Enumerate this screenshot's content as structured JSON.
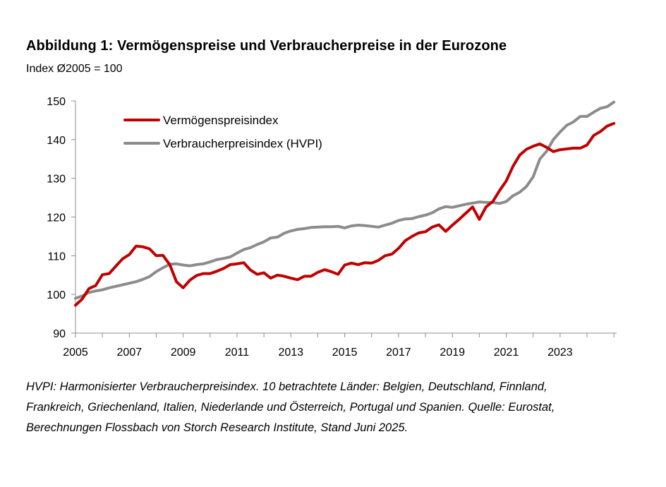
{
  "title": "Abbildung 1: Vermögenspreise und Verbraucherpreise in der Eurozone",
  "subtitle": "Index Ø2005 = 100",
  "footnote": {
    "line1": "HVPI: Harmonisierter Verbraucherpreisindex. 10 betrachtete Länder: Belgien, Deutschland, Finnland,",
    "line2": "Frankreich, Griechenland, Italien, Niederlande und Österreich, Portugal und Spanien. Quelle: Eurostat,",
    "line3": "Berechnungen Flossbach von Storch Research Institute, Stand Juni 2025."
  },
  "chart_data": {
    "type": "line",
    "title": "Abbildung 1: Vermögenspreise und Verbraucherpreise in der Eurozone",
    "ylabel": "Index Ø2005 = 100",
    "xlabel": "",
    "xlim": [
      2005,
      2025.1
    ],
    "ylim": [
      90,
      150
    ],
    "yticks": [
      90,
      100,
      110,
      120,
      130,
      140,
      150
    ],
    "xticks": [
      2005,
      2007,
      2009,
      2011,
      2013,
      2015,
      2017,
      2019,
      2021,
      2023
    ],
    "xtick_labels": [
      "2005",
      "2007",
      "2009",
      "2011",
      "2013",
      "2015",
      "2017",
      "2019",
      "2021",
      "2023"
    ],
    "ytick_labels": [
      "90",
      "100",
      "110",
      "120",
      "130",
      "140",
      "150"
    ],
    "grid": false,
    "legend_position": "top-left",
    "series": [
      {
        "name": "Vermögenspreisindex",
        "color": "#c00000",
        "x": [
          2005.0,
          2005.25,
          2005.5,
          2005.75,
          2006.0,
          2006.25,
          2006.5,
          2006.75,
          2007.0,
          2007.25,
          2007.5,
          2007.75,
          2008.0,
          2008.25,
          2008.5,
          2008.75,
          2009.0,
          2009.25,
          2009.5,
          2009.75,
          2010.0,
          2010.25,
          2010.5,
          2010.75,
          2011.0,
          2011.25,
          2011.5,
          2011.75,
          2012.0,
          2012.25,
          2012.5,
          2012.75,
          2013.0,
          2013.25,
          2013.5,
          2013.75,
          2014.0,
          2014.25,
          2014.5,
          2014.75,
          2015.0,
          2015.25,
          2015.5,
          2015.75,
          2016.0,
          2016.25,
          2016.5,
          2016.75,
          2017.0,
          2017.25,
          2017.5,
          2017.75,
          2018.0,
          2018.25,
          2018.5,
          2018.75,
          2019.0,
          2019.25,
          2019.5,
          2019.75,
          2020.0,
          2020.25,
          2020.5,
          2020.75,
          2021.0,
          2021.25,
          2021.5,
          2021.75,
          2022.0,
          2022.25,
          2022.5,
          2022.75,
          2023.0,
          2023.25,
          2023.5,
          2023.75,
          2024.0,
          2024.25,
          2024.5,
          2024.75,
          2025.0
        ],
        "values": [
          97.2,
          98.8,
          101.5,
          102.3,
          105.1,
          105.4,
          107.3,
          109.2,
          110.3,
          112.5,
          112.3,
          111.8,
          110.0,
          110.1,
          107.7,
          103.3,
          101.7,
          103.7,
          104.9,
          105.4,
          105.4,
          106.0,
          106.7,
          107.7,
          107.9,
          108.2,
          106.3,
          105.2,
          105.6,
          104.2,
          105.0,
          104.7,
          104.2,
          103.8,
          104.7,
          104.7,
          105.7,
          106.4,
          105.9,
          105.2,
          107.6,
          108.1,
          107.7,
          108.2,
          108.1,
          108.8,
          110.0,
          110.4,
          111.9,
          113.9,
          115.0,
          115.9,
          116.2,
          117.4,
          118.0,
          116.3,
          117.9,
          119.4,
          121.0,
          122.6,
          119.4,
          122.6,
          124.0,
          126.8,
          129.3,
          133.1,
          136.0,
          137.5,
          138.3,
          138.9,
          138.0,
          136.9,
          137.4,
          137.6,
          137.8,
          137.8,
          138.6,
          141.1,
          142.1,
          143.5,
          144.2
        ]
      },
      {
        "name": "Verbraucherpreisindex (HVPI)",
        "color": "#8c8c8c",
        "x": [
          2005.0,
          2005.25,
          2005.5,
          2005.75,
          2006.0,
          2006.25,
          2006.5,
          2006.75,
          2007.0,
          2007.25,
          2007.5,
          2007.75,
          2008.0,
          2008.25,
          2008.5,
          2008.75,
          2009.0,
          2009.25,
          2009.5,
          2009.75,
          2010.0,
          2010.25,
          2010.5,
          2010.75,
          2011.0,
          2011.25,
          2011.5,
          2011.75,
          2012.0,
          2012.25,
          2012.5,
          2012.75,
          2013.0,
          2013.25,
          2013.5,
          2013.75,
          2014.0,
          2014.25,
          2014.5,
          2014.75,
          2015.0,
          2015.25,
          2015.5,
          2015.75,
          2016.0,
          2016.25,
          2016.5,
          2016.75,
          2017.0,
          2017.25,
          2017.5,
          2017.75,
          2018.0,
          2018.25,
          2018.5,
          2018.75,
          2019.0,
          2019.25,
          2019.5,
          2019.75,
          2020.0,
          2020.25,
          2020.5,
          2020.75,
          2021.0,
          2021.25,
          2021.5,
          2021.75,
          2022.0,
          2022.25,
          2022.5,
          2022.75,
          2023.0,
          2023.25,
          2023.5,
          2023.75,
          2024.0,
          2024.25,
          2024.5,
          2024.75,
          2025.0
        ],
        "values": [
          99.0,
          99.6,
          100.5,
          100.9,
          101.2,
          101.7,
          102.1,
          102.5,
          102.9,
          103.3,
          103.9,
          104.6,
          105.9,
          106.9,
          107.8,
          107.9,
          107.6,
          107.4,
          107.7,
          107.9,
          108.4,
          109.0,
          109.3,
          109.7,
          110.7,
          111.6,
          112.1,
          112.9,
          113.6,
          114.6,
          114.8,
          115.8,
          116.4,
          116.8,
          117.0,
          117.3,
          117.4,
          117.5,
          117.5,
          117.6,
          117.2,
          117.7,
          117.9,
          117.8,
          117.6,
          117.4,
          117.9,
          118.4,
          119.1,
          119.5,
          119.6,
          120.1,
          120.5,
          121.1,
          122.1,
          122.7,
          122.5,
          122.9,
          123.3,
          123.6,
          123.9,
          123.8,
          123.8,
          123.5,
          124.0,
          125.5,
          126.4,
          127.9,
          130.4,
          135.0,
          137.0,
          140.0,
          142.0,
          143.7,
          144.6,
          146.0,
          146.0,
          147.1,
          148.1,
          148.5,
          149.7
        ]
      }
    ]
  }
}
